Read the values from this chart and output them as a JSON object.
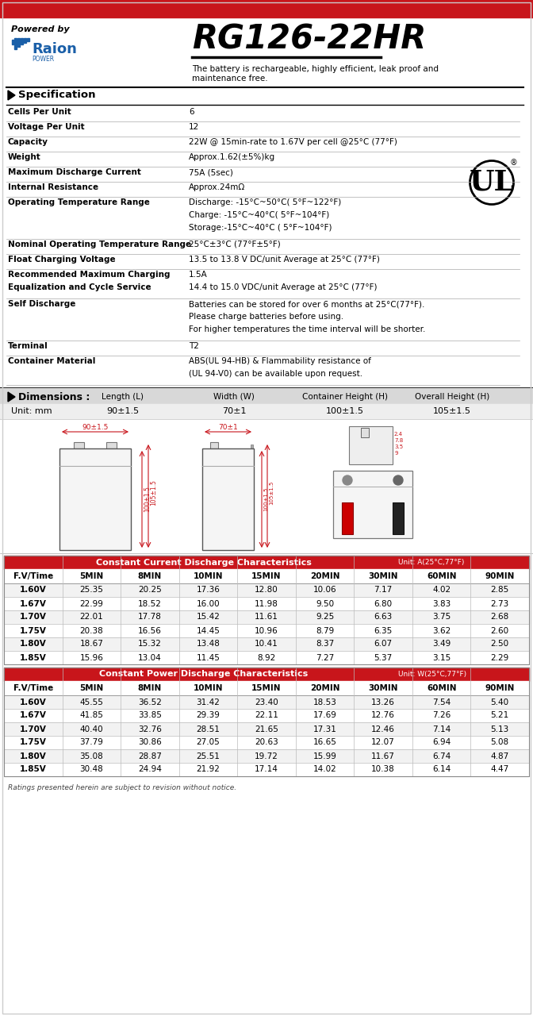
{
  "title": "RG126-22HR",
  "powered_by": "Powered by",
  "description_line1": "The battery is rechargeable, highly efficient, leak proof and",
  "description_line2": "maintenance free.",
  "spec_title": "Specification",
  "specs": [
    [
      "Cells Per Unit",
      "6"
    ],
    [
      "Voltage Per Unit",
      "12"
    ],
    [
      "Capacity",
      "22W @ 15min-rate to 1.67V per cell @25°C (77°F)"
    ],
    [
      "Weight",
      "Approx.1.62(±5%)kg"
    ],
    [
      "Maximum Discharge Current",
      "75A (5sec)"
    ],
    [
      "Internal Resistance",
      "Approx.24mΩ"
    ],
    [
      "Operating Temperature Range",
      "Discharge: -15°C~50°C( 5°F~122°F)\nCharge: -15°C~40°C( 5°F~104°F)\nStorage:-15°C~40°C ( 5°F~104°F)"
    ],
    [
      "Nominal Operating Temperature Range",
      "25°C±3°C (77°F±5°F)"
    ],
    [
      "Float Charging Voltage",
      "13.5 to 13.8 V DC/unit Average at 25°C (77°F)"
    ],
    [
      "Recommended Maximum Charging\nEqualization and Cycle Service",
      "1.5A\n14.4 to 15.0 VDC/unit Average at 25°C (77°F)"
    ],
    [
      "Self Discharge",
      "Batteries can be stored for over 6 months at 25°C(77°F).\nPlease charge batteries before using.\nFor higher temperatures the time interval will be shorter."
    ],
    [
      "Terminal",
      "T2"
    ],
    [
      "Container Material",
      "ABS(UL 94-HB) & Flammability resistance of\n(UL 94-V0) can be available upon request."
    ]
  ],
  "dim_title": "Dimensions :",
  "dim_headers": [
    "Length (L)",
    "Width (W)",
    "Container Height (H)",
    "Overall Height (H)"
  ],
  "dim_unit": "Unit: mm",
  "dim_values": [
    "90±1.5",
    "70±1",
    "100±1.5",
    "105±1.5"
  ],
  "cc_table_title": "Constant Current Discharge Characteristics",
  "cc_unit": "Unit: A(25°C,77°F)",
  "cc_headers": [
    "F.V/Time",
    "5MIN",
    "8MIN",
    "10MIN",
    "15MIN",
    "20MIN",
    "30MIN",
    "60MIN",
    "90MIN"
  ],
  "cc_data": [
    [
      "1.60V",
      "25.35",
      "20.25",
      "17.36",
      "12.80",
      "10.06",
      "7.17",
      "4.02",
      "2.85"
    ],
    [
      "1.67V",
      "22.99",
      "18.52",
      "16.00",
      "11.98",
      "9.50",
      "6.80",
      "3.83",
      "2.73"
    ],
    [
      "1.70V",
      "22.01",
      "17.78",
      "15.42",
      "11.61",
      "9.25",
      "6.63",
      "3.75",
      "2.68"
    ],
    [
      "1.75V",
      "20.38",
      "16.56",
      "14.45",
      "10.96",
      "8.79",
      "6.35",
      "3.62",
      "2.60"
    ],
    [
      "1.80V",
      "18.67",
      "15.32",
      "13.48",
      "10.41",
      "8.37",
      "6.07",
      "3.49",
      "2.50"
    ],
    [
      "1.85V",
      "15.96",
      "13.04",
      "11.45",
      "8.92",
      "7.27",
      "5.37",
      "3.15",
      "2.29"
    ]
  ],
  "cp_table_title": "Constant Power Discharge Characteristics",
  "cp_unit": "Unit: W(25°C,77°F)",
  "cp_headers": [
    "F.V/Time",
    "5MIN",
    "8MIN",
    "10MIN",
    "15MIN",
    "20MIN",
    "30MIN",
    "60MIN",
    "90MIN"
  ],
  "cp_data": [
    [
      "1.60V",
      "45.55",
      "36.52",
      "31.42",
      "23.40",
      "18.53",
      "13.26",
      "7.54",
      "5.40"
    ],
    [
      "1.67V",
      "41.85",
      "33.85",
      "29.39",
      "22.11",
      "17.69",
      "12.76",
      "7.26",
      "5.21"
    ],
    [
      "1.70V",
      "40.40",
      "32.76",
      "28.51",
      "21.65",
      "17.31",
      "12.46",
      "7.14",
      "5.13"
    ],
    [
      "1.75V",
      "37.79",
      "30.86",
      "27.05",
      "20.63",
      "16.65",
      "12.07",
      "6.94",
      "5.08"
    ],
    [
      "1.80V",
      "35.08",
      "28.87",
      "25.51",
      "19.72",
      "15.99",
      "11.67",
      "6.74",
      "4.87"
    ],
    [
      "1.85V",
      "30.48",
      "24.94",
      "21.92",
      "17.14",
      "14.02",
      "10.38",
      "6.14",
      "4.47"
    ]
  ],
  "footer": "Ratings presented herein are subject to revision without notice.",
  "red_color": "#c8151b",
  "table_header_bg": "#c8151b"
}
